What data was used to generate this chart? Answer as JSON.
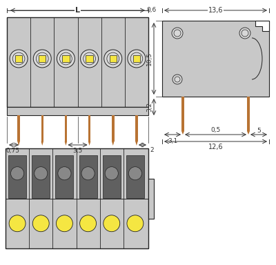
{
  "bg_color": "#ffffff",
  "gray": "#c8c8c8",
  "dark_gray": "#888888",
  "light_gray": "#d8d8d8",
  "yellow": "#f5e642",
  "orange_brown": "#b87333",
  "black": "#000000",
  "line_color": "#222222",
  "dim_color": "#333333",
  "num_poles": 6,
  "annotations": {
    "L": "L",
    "dim_06": "0,6",
    "dim_136": "13,6",
    "dim_105": "10,5",
    "dim_32": "3,2",
    "dim_05": "0,5",
    "dim_31": "3,1",
    "dim_5": "5",
    "dim_126": "12,6",
    "dim_075": "0,75",
    "dim_35": "3,5",
    "dim_2": "2"
  }
}
